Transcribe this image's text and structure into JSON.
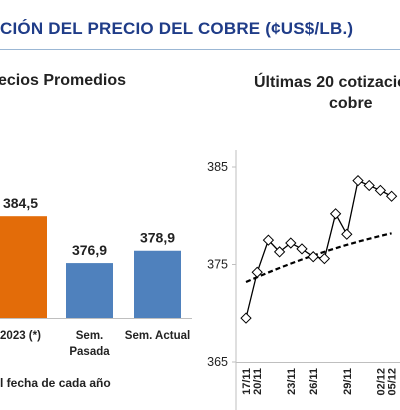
{
  "header": {
    "title": "CIÓN DEL PRECIO DEL COBRE (¢US$/LB.)"
  },
  "footnote": "l fecha de cada año",
  "chart_data": [
    {
      "type": "bar",
      "title": "ecios Promedios",
      "categories": [
        "2023 (*)",
        "Sem. Pasada",
        "Sem. Actual"
      ],
      "category_lines": [
        [
          "2023 (*)"
        ],
        [
          "Sem.",
          "Pasada"
        ],
        [
          "Sem. Actual"
        ]
      ],
      "values": [
        384.5,
        376.9,
        378.9
      ],
      "value_labels": [
        "384,5",
        "376,9",
        "378,9"
      ],
      "colors": [
        "#e36c09",
        "#4f81bd",
        "#4f81bd"
      ],
      "grid": false
    },
    {
      "type": "line",
      "title": "Últimas 20 cotizacio cobre",
      "title_lines": [
        "Últimas 20 cotizacio",
        "cobre"
      ],
      "x": [
        "17/11",
        "20/11",
        "21/11",
        "22/11",
        "23/11",
        "24/11",
        "26/11",
        "27/11",
        "28/11",
        "29/11",
        "30/11",
        "01/12",
        "02/12",
        "05/12"
      ],
      "x_tick_labels": [
        "17/11",
        "20/11",
        "23/11",
        "26/11",
        "29/11",
        "02/12",
        "05/12"
      ],
      "series": [
        {
          "values": [
            369.5,
            374.2,
            377.5,
            376.3,
            377.2,
            376.6,
            375.8,
            375.6,
            380.2,
            378.1,
            383.6,
            383.1,
            382.6,
            382.0
          ],
          "color": "#000000"
        }
      ],
      "trend": {
        "style": "dashed",
        "start": 373.2,
        "end": 378.2
      },
      "yticks": [
        365,
        375,
        385
      ],
      "ylim": [
        365,
        390
      ],
      "grid": false
    }
  ]
}
